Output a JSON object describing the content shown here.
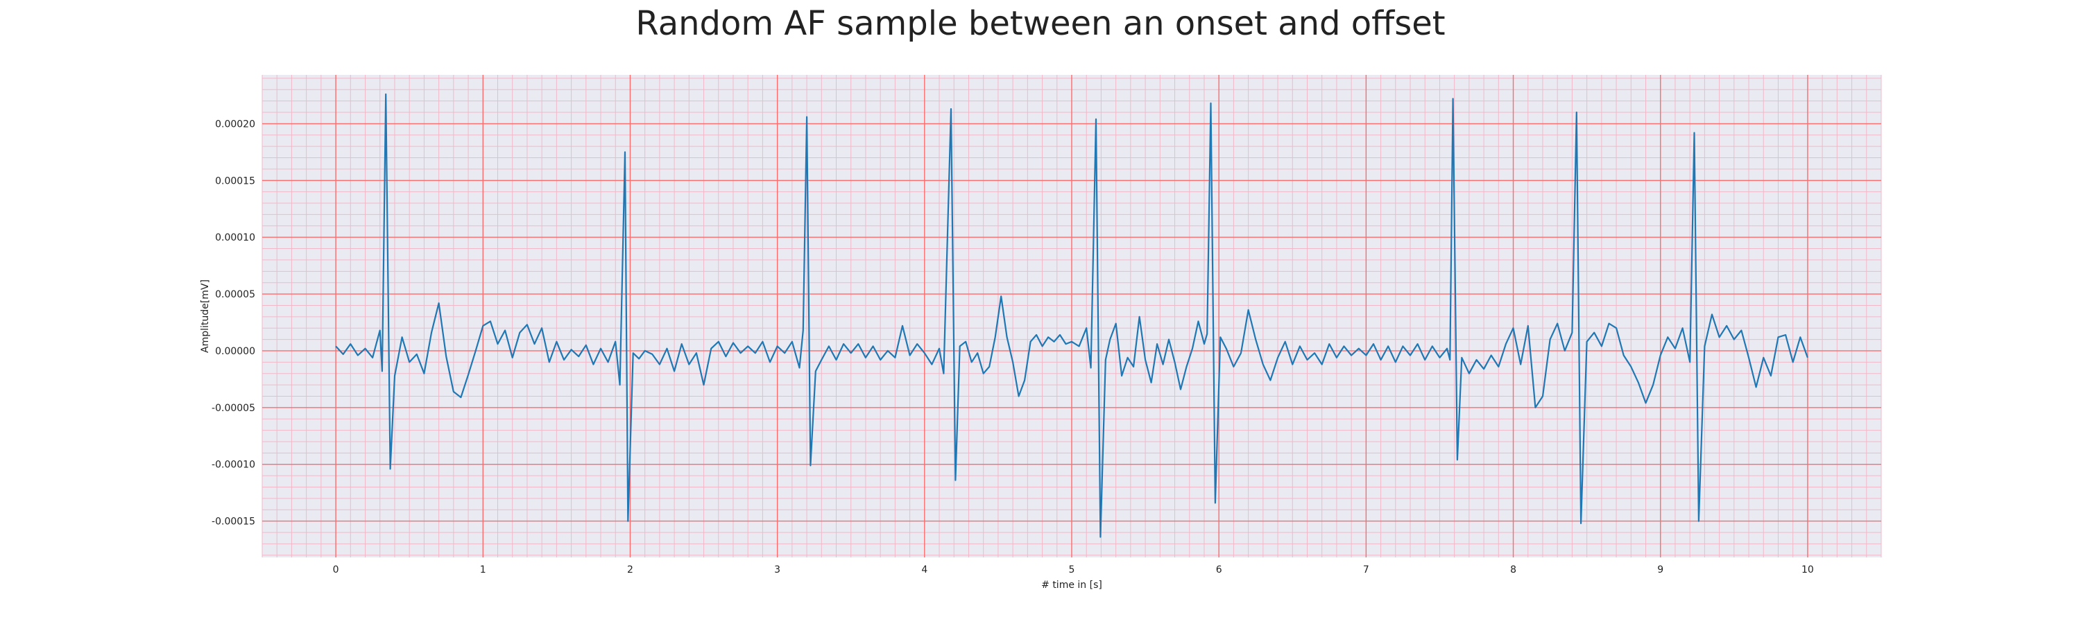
{
  "chart_data": {
    "type": "line",
    "title": "Random AF sample between an onset and offset",
    "xlabel": "# time in [s]",
    "ylabel": "Amplitude[mV]",
    "xlim": [
      -0.5,
      10.5
    ],
    "ylim": [
      -0.000182,
      0.000243
    ],
    "xticks": [
      0,
      1,
      2,
      3,
      4,
      5,
      6,
      7,
      8,
      9,
      10
    ],
    "xtick_labels": [
      "0",
      "1",
      "2",
      "3",
      "4",
      "5",
      "6",
      "7",
      "8",
      "9",
      "10"
    ],
    "yticks": [
      -0.00015,
      -0.0001,
      -5e-05,
      0,
      5e-05,
      0.0001,
      0.00015,
      0.0002
    ],
    "ytick_labels": [
      "-0.00015",
      "-0.00010",
      "-0.00005",
      "0.00000",
      "0.00005",
      "0.00010",
      "0.00015",
      "0.00020"
    ],
    "grid": true,
    "colors": {
      "line": "#1f77b4",
      "plot_background": "#eaeaf2",
      "major_grid": "#ff6b6b",
      "minor_grid": "#f2b8c8"
    },
    "series": [
      {
        "points": [
          [
            0.0,
            4e-06
          ],
          [
            0.05,
            -3e-06
          ],
          [
            0.1,
            6e-06
          ],
          [
            0.15,
            -4e-06
          ],
          [
            0.2,
            2e-06
          ],
          [
            0.25,
            -6e-06
          ],
          [
            0.3,
            1.8e-05
          ],
          [
            0.315,
            -1.8e-05
          ],
          [
            0.34,
            0.000226
          ],
          [
            0.37,
            -0.000104
          ],
          [
            0.4,
            -2.2e-05
          ],
          [
            0.45,
            1.2e-05
          ],
          [
            0.5,
            -1e-05
          ],
          [
            0.55,
            -3e-06
          ],
          [
            0.6,
            -2e-05
          ],
          [
            0.65,
            1.6e-05
          ],
          [
            0.7,
            4.2e-05
          ],
          [
            0.75,
            -5e-06
          ],
          [
            0.8,
            -3.6e-05
          ],
          [
            0.85,
            -4.1e-05
          ],
          [
            0.9,
            -2.1e-05
          ],
          [
            0.95,
            0.0
          ],
          [
            1.0,
            2.2e-05
          ],
          [
            1.05,
            2.6e-05
          ],
          [
            1.1,
            6e-06
          ],
          [
            1.15,
            1.8e-05
          ],
          [
            1.2,
            -6e-06
          ],
          [
            1.25,
            1.6e-05
          ],
          [
            1.3,
            2.3e-05
          ],
          [
            1.35,
            6e-06
          ],
          [
            1.4,
            2e-05
          ],
          [
            1.45,
            -1e-05
          ],
          [
            1.5,
            8e-06
          ],
          [
            1.55,
            -8e-06
          ],
          [
            1.6,
            1e-06
          ],
          [
            1.65,
            -5e-06
          ],
          [
            1.7,
            5e-06
          ],
          [
            1.75,
            -1.2e-05
          ],
          [
            1.8,
            2e-06
          ],
          [
            1.85,
            -1e-05
          ],
          [
            1.9,
            8e-06
          ],
          [
            1.93,
            -3e-05
          ],
          [
            1.965,
            0.000175
          ],
          [
            1.985,
            -0.00015
          ],
          [
            2.02,
            -2e-06
          ],
          [
            2.06,
            -7e-06
          ],
          [
            2.1,
            0.0
          ],
          [
            2.15,
            -3e-06
          ],
          [
            2.2,
            -1.2e-05
          ],
          [
            2.25,
            2e-06
          ],
          [
            2.3,
            -1.8e-05
          ],
          [
            2.35,
            6e-06
          ],
          [
            2.4,
            -1.2e-05
          ],
          [
            2.45,
            -2e-06
          ],
          [
            2.5,
            -3e-05
          ],
          [
            2.55,
            2e-06
          ],
          [
            2.6,
            8e-06
          ],
          [
            2.65,
            -5e-06
          ],
          [
            2.7,
            7e-06
          ],
          [
            2.75,
            -2e-06
          ],
          [
            2.8,
            4e-06
          ],
          [
            2.85,
            -2e-06
          ],
          [
            2.9,
            8e-06
          ],
          [
            2.95,
            -1e-05
          ],
          [
            3.0,
            4e-06
          ],
          [
            3.05,
            -2e-06
          ],
          [
            3.1,
            8e-06
          ],
          [
            3.15,
            -1.5e-05
          ],
          [
            3.175,
            1.8e-05
          ],
          [
            3.2,
            0.000206
          ],
          [
            3.225,
            -0.000101
          ],
          [
            3.26,
            -1.8e-05
          ],
          [
            3.3,
            -8e-06
          ],
          [
            3.35,
            4e-06
          ],
          [
            3.4,
            -8e-06
          ],
          [
            3.45,
            6e-06
          ],
          [
            3.5,
            -2e-06
          ],
          [
            3.55,
            6e-06
          ],
          [
            3.6,
            -6e-06
          ],
          [
            3.65,
            4e-06
          ],
          [
            3.7,
            -8e-06
          ],
          [
            3.75,
            0.0
          ],
          [
            3.8,
            -6e-06
          ],
          [
            3.85,
            2.2e-05
          ],
          [
            3.9,
            -4e-06
          ],
          [
            3.95,
            6e-06
          ],
          [
            4.0,
            -2e-06
          ],
          [
            4.05,
            -1.2e-05
          ],
          [
            4.1,
            2e-06
          ],
          [
            4.13,
            -2e-05
          ],
          [
            4.18,
            0.000213
          ],
          [
            4.21,
            -0.000114
          ],
          [
            4.24,
            4e-06
          ],
          [
            4.28,
            8e-06
          ],
          [
            4.32,
            -1e-05
          ],
          [
            4.36,
            -2e-06
          ],
          [
            4.4,
            -2e-05
          ],
          [
            4.44,
            -1.4e-05
          ],
          [
            4.48,
            1.2e-05
          ],
          [
            4.52,
            4.8e-05
          ],
          [
            4.56,
            1.2e-05
          ],
          [
            4.6,
            -1e-05
          ],
          [
            4.64,
            -4e-05
          ],
          [
            4.68,
            -2.6e-05
          ],
          [
            4.72,
            8e-06
          ],
          [
            4.76,
            1.4e-05
          ],
          [
            4.8,
            4e-06
          ],
          [
            4.84,
            1.2e-05
          ],
          [
            4.88,
            8e-06
          ],
          [
            4.92,
            1.4e-05
          ],
          [
            4.96,
            6e-06
          ],
          [
            5.0,
            8e-06
          ],
          [
            5.05,
            4e-06
          ],
          [
            5.1,
            2e-05
          ],
          [
            5.13,
            -1.5e-05
          ],
          [
            5.165,
            0.000204
          ],
          [
            5.195,
            -0.000164
          ],
          [
            5.23,
            -8e-06
          ],
          [
            5.26,
            1e-05
          ],
          [
            5.3,
            2.4e-05
          ],
          [
            5.34,
            -2.2e-05
          ],
          [
            5.38,
            -6e-06
          ],
          [
            5.42,
            -1.4e-05
          ],
          [
            5.46,
            3e-05
          ],
          [
            5.5,
            -8e-06
          ],
          [
            5.54,
            -2.8e-05
          ],
          [
            5.58,
            6e-06
          ],
          [
            5.62,
            -1.2e-05
          ],
          [
            5.66,
            1e-05
          ],
          [
            5.7,
            -1e-05
          ],
          [
            5.74,
            -3.4e-05
          ],
          [
            5.78,
            -1.4e-05
          ],
          [
            5.82,
            2e-06
          ],
          [
            5.86,
            2.6e-05
          ],
          [
            5.9,
            6e-06
          ],
          [
            5.92,
            1.5e-05
          ],
          [
            5.945,
            0.000218
          ],
          [
            5.975,
            -0.000134
          ],
          [
            6.01,
            1.2e-05
          ],
          [
            6.05,
            2e-06
          ],
          [
            6.1,
            -1.4e-05
          ],
          [
            6.15,
            -2e-06
          ],
          [
            6.2,
            3.6e-05
          ],
          [
            6.25,
            1e-05
          ],
          [
            6.3,
            -1.2e-05
          ],
          [
            6.35,
            -2.6e-05
          ],
          [
            6.4,
            -6e-06
          ],
          [
            6.45,
            8e-06
          ],
          [
            6.5,
            -1.2e-05
          ],
          [
            6.55,
            4e-06
          ],
          [
            6.6,
            -8e-06
          ],
          [
            6.65,
            -2e-06
          ],
          [
            6.7,
            -1.2e-05
          ],
          [
            6.75,
            6e-06
          ],
          [
            6.8,
            -6e-06
          ],
          [
            6.85,
            4e-06
          ],
          [
            6.9,
            -4e-06
          ],
          [
            6.95,
            2e-06
          ],
          [
            7.0,
            -4e-06
          ],
          [
            7.05,
            6e-06
          ],
          [
            7.1,
            -8e-06
          ],
          [
            7.15,
            4e-06
          ],
          [
            7.2,
            -1e-05
          ],
          [
            7.25,
            4e-06
          ],
          [
            7.3,
            -4e-06
          ],
          [
            7.35,
            6e-06
          ],
          [
            7.4,
            -8e-06
          ],
          [
            7.45,
            4e-06
          ],
          [
            7.5,
            -6e-06
          ],
          [
            7.55,
            2e-06
          ],
          [
            7.57,
            -8e-06
          ],
          [
            7.59,
            0.000222
          ],
          [
            7.62,
            -9.6e-05
          ],
          [
            7.65,
            -6e-06
          ],
          [
            7.7,
            -2e-05
          ],
          [
            7.75,
            -8e-06
          ],
          [
            7.8,
            -1.6e-05
          ],
          [
            7.85,
            -4e-06
          ],
          [
            7.9,
            -1.4e-05
          ],
          [
            7.95,
            6e-06
          ],
          [
            8.0,
            2e-05
          ],
          [
            8.05,
            -1.2e-05
          ],
          [
            8.1,
            2.2e-05
          ],
          [
            8.15,
            -5e-05
          ],
          [
            8.2,
            -4e-05
          ],
          [
            8.25,
            1e-05
          ],
          [
            8.3,
            2.4e-05
          ],
          [
            8.35,
            0.0
          ],
          [
            8.4,
            1.6e-05
          ],
          [
            8.43,
            0.00021
          ],
          [
            8.46,
            -0.000152
          ],
          [
            8.5,
            8e-06
          ],
          [
            8.55,
            1.6e-05
          ],
          [
            8.6,
            4e-06
          ],
          [
            8.65,
            2.4e-05
          ],
          [
            8.7,
            2e-05
          ],
          [
            8.75,
            -4e-06
          ],
          [
            8.8,
            -1.4e-05
          ],
          [
            8.85,
            -2.8e-05
          ],
          [
            8.9,
            -4.6e-05
          ],
          [
            8.95,
            -3e-05
          ],
          [
            9.0,
            -4e-06
          ],
          [
            9.05,
            1.2e-05
          ],
          [
            9.1,
            2e-06
          ],
          [
            9.15,
            2e-05
          ],
          [
            9.2,
            -1e-05
          ],
          [
            9.23,
            0.000192
          ],
          [
            9.26,
            -0.00015
          ],
          [
            9.3,
            4e-06
          ],
          [
            9.35,
            3.2e-05
          ],
          [
            9.4,
            1.2e-05
          ],
          [
            9.45,
            2.2e-05
          ],
          [
            9.5,
            1e-05
          ],
          [
            9.55,
            1.8e-05
          ],
          [
            9.6,
            -6e-06
          ],
          [
            9.65,
            -3.2e-05
          ],
          [
            9.7,
            -6e-06
          ],
          [
            9.75,
            -2.2e-05
          ],
          [
            9.8,
            1.2e-05
          ],
          [
            9.85,
            1.4e-05
          ],
          [
            9.9,
            -1e-05
          ],
          [
            9.95,
            1.2e-05
          ],
          [
            10.0,
            -6e-06
          ]
        ]
      }
    ]
  }
}
